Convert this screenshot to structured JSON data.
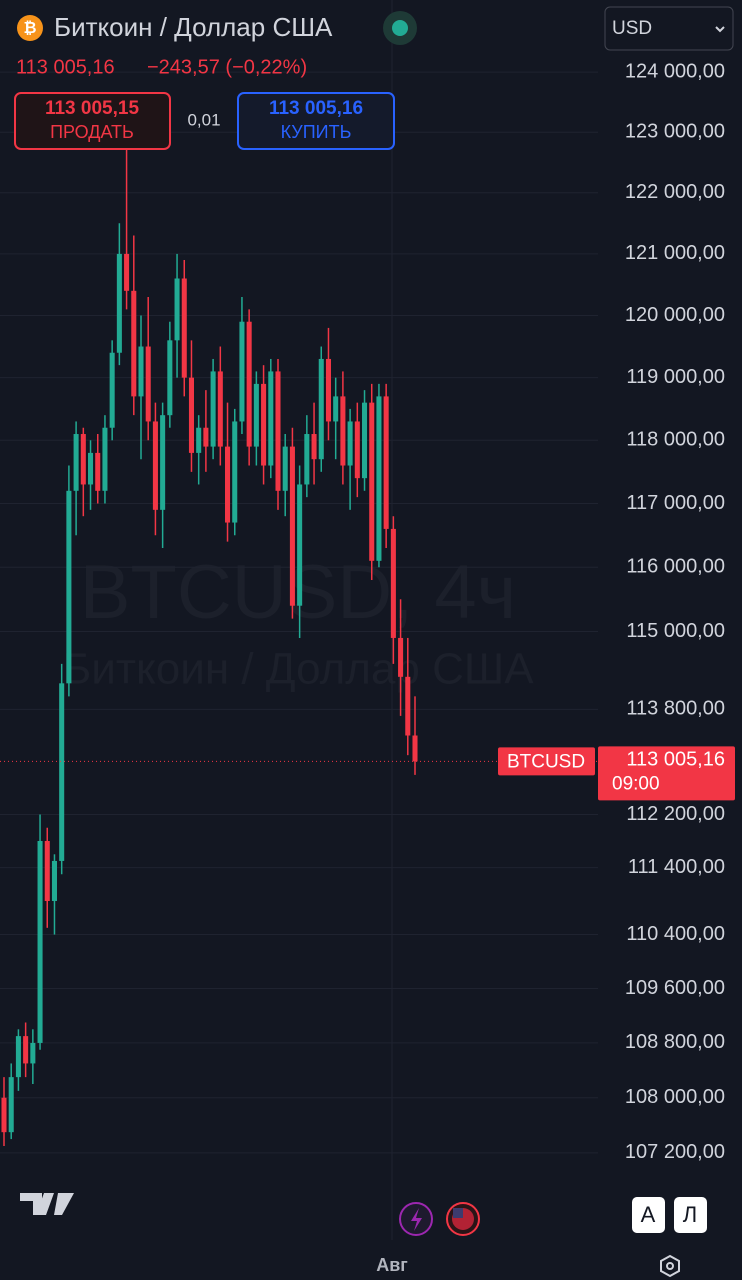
{
  "header": {
    "title": "Биткоин / Доллар США",
    "price": "113 005,16",
    "change": "−243,57 (−0,22%)"
  },
  "trade": {
    "sell_price": "113 005,15",
    "sell_label": "ПРОДАТЬ",
    "spread": "0,01",
    "buy_price": "113 005,16",
    "buy_label": "КУПИТЬ"
  },
  "currency": "USD",
  "watermark": {
    "symbol": "BTCUSD, 4ч",
    "name": "Биткоин / Доллар США"
  },
  "buttons": [
    "А",
    "Л"
  ],
  "chart_data": {
    "type": "candlestick",
    "up_color": "#22ab94",
    "down_color": "#f23645",
    "yscale": "log",
    "grid": true,
    "ylim": [
      105950,
      125210
    ],
    "yticks": [
      {
        "value": 124000,
        "label": "124 000,00"
      },
      {
        "value": 123000,
        "label": "123 000,00"
      },
      {
        "value": 122000,
        "label": "122 000,00"
      },
      {
        "value": 121000,
        "label": "121 000,00"
      },
      {
        "value": 120000,
        "label": "120 000,00"
      },
      {
        "value": 119000,
        "label": "119 000,00"
      },
      {
        "value": 118000,
        "label": "118 000,00"
      },
      {
        "value": 117000,
        "label": "117 000,00"
      },
      {
        "value": 116000,
        "label": "116 000,00"
      },
      {
        "value": 115000,
        "label": "115 000,00"
      },
      {
        "value": 113800,
        "label": "113 800,00"
      },
      {
        "value": 112200,
        "label": "112 200,00"
      },
      {
        "value": 111400,
        "label": "111 400,00"
      },
      {
        "value": 110400,
        "label": "110 400,00"
      },
      {
        "value": 109600,
        "label": "109 600,00"
      },
      {
        "value": 108800,
        "label": "108 800,00"
      },
      {
        "value": 108000,
        "label": "108 000,00"
      },
      {
        "value": 107200,
        "label": "107 200,00"
      }
    ],
    "x_tick_labels": [
      "Авг"
    ],
    "last_price": {
      "value": 113005.16,
      "label": "113 005,16"
    },
    "last_price_symbol": "BTCUSD",
    "time_to_close": "09:00",
    "ohlc": [
      [
        108000,
        108300,
        107300,
        107500
      ],
      [
        107500,
        108500,
        107400,
        108300
      ],
      [
        108300,
        109000,
        108100,
        108900
      ],
      [
        108900,
        109100,
        108300,
        108500
      ],
      [
        108500,
        109000,
        108200,
        108800
      ],
      [
        108800,
        112200,
        108700,
        111800
      ],
      [
        111800,
        112000,
        110500,
        110900
      ],
      [
        110900,
        111600,
        110400,
        111500
      ],
      [
        111500,
        114500,
        111300,
        114200
      ],
      [
        114200,
        117600,
        114000,
        117200
      ],
      [
        117200,
        118300,
        116500,
        118100
      ],
      [
        118100,
        118200,
        116800,
        117300
      ],
      [
        117300,
        118000,
        116900,
        117800
      ],
      [
        117800,
        118100,
        117000,
        117200
      ],
      [
        117200,
        118400,
        117000,
        118200
      ],
      [
        118200,
        119600,
        118000,
        119400
      ],
      [
        119400,
        121500,
        119200,
        121000
      ],
      [
        121000,
        122800,
        120100,
        120400
      ],
      [
        120400,
        121300,
        118400,
        118700
      ],
      [
        118700,
        120000,
        117700,
        119500
      ],
      [
        119500,
        120300,
        118000,
        118300
      ],
      [
        118300,
        118600,
        116500,
        116900
      ],
      [
        116900,
        118600,
        116300,
        118400
      ],
      [
        118400,
        119900,
        118200,
        119600
      ],
      [
        119600,
        121000,
        119000,
        120600
      ],
      [
        120600,
        120900,
        118700,
        119000
      ],
      [
        119000,
        119600,
        117500,
        117800
      ],
      [
        117800,
        118400,
        117300,
        118200
      ],
      [
        118200,
        118800,
        117500,
        117900
      ],
      [
        117900,
        119300,
        117700,
        119100
      ],
      [
        119100,
        119500,
        117600,
        117900
      ],
      [
        117900,
        118600,
        116400,
        116700
      ],
      [
        116700,
        118500,
        116500,
        118300
      ],
      [
        118300,
        120300,
        118100,
        119900
      ],
      [
        119900,
        120100,
        117600,
        117900
      ],
      [
        117900,
        119100,
        117600,
        118900
      ],
      [
        118900,
        119200,
        117300,
        117600
      ],
      [
        117600,
        119300,
        117400,
        119100
      ],
      [
        119100,
        119300,
        116900,
        117200
      ],
      [
        117200,
        118100,
        116800,
        117900
      ],
      [
        117900,
        118200,
        115200,
        115400
      ],
      [
        115400,
        117600,
        114900,
        117300
      ],
      [
        117300,
        118400,
        117100,
        118100
      ],
      [
        118100,
        118600,
        117300,
        117700
      ],
      [
        117700,
        119500,
        117500,
        119300
      ],
      [
        119300,
        119800,
        118000,
        118300
      ],
      [
        118300,
        119000,
        117700,
        118700
      ],
      [
        118700,
        119100,
        117300,
        117600
      ],
      [
        117600,
        118500,
        116900,
        118300
      ],
      [
        118300,
        118600,
        117100,
        117400
      ],
      [
        117400,
        118800,
        117200,
        118600
      ],
      [
        118600,
        118900,
        115800,
        116100
      ],
      [
        116100,
        118900,
        116000,
        118700
      ],
      [
        118700,
        118900,
        116300,
        116600
      ],
      [
        116600,
        116800,
        114500,
        114900
      ],
      [
        114900,
        115500,
        113700,
        114300
      ],
      [
        114300,
        114900,
        113100,
        113400
      ],
      [
        113400,
        114000,
        112800,
        113005.16
      ]
    ]
  }
}
